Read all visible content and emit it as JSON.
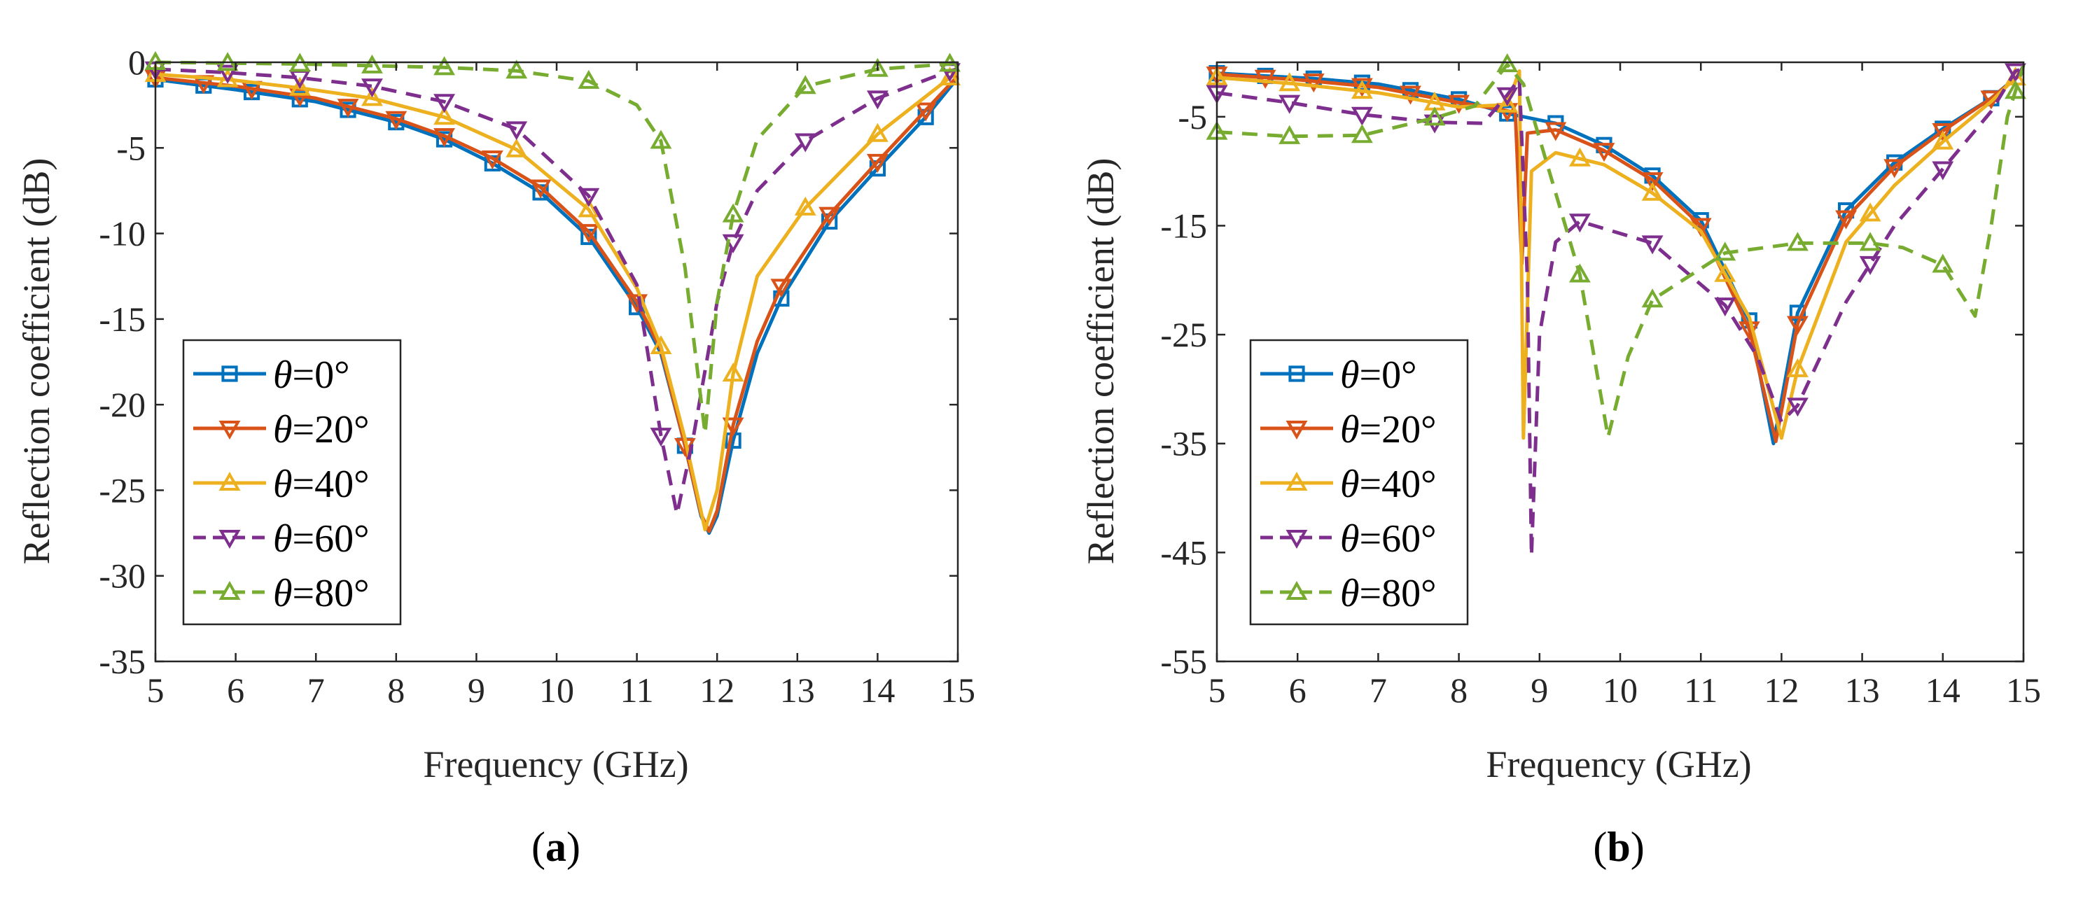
{
  "chart_data": [
    {
      "type": "line",
      "caption_letter": "a",
      "xlabel": "Frequency (GHz)",
      "ylabel": "Reflection coefficient (dB)",
      "xlim": [
        5,
        15
      ],
      "ylim": [
        -35,
        0
      ],
      "xticks": [
        5,
        6,
        7,
        8,
        9,
        10,
        11,
        12,
        13,
        14,
        15
      ],
      "yticks": [
        0,
        -5,
        -10,
        -15,
        -20,
        -25,
        -30,
        -35
      ],
      "legend_position": "bottom-left",
      "series": [
        {
          "name": "θ=0°",
          "color": "#0072BD",
          "dash": "solid",
          "marker": "square",
          "marker_start": 5,
          "marker_step": 0.6,
          "x": [
            5,
            6,
            7,
            8,
            8.6,
            9.2,
            9.8,
            10.4,
            11,
            11.3,
            11.6,
            11.8,
            11.9,
            12.0,
            12.2,
            12.5,
            12.8,
            13.4,
            14,
            14.6,
            15
          ],
          "y": [
            -1.0,
            -1.6,
            -2.3,
            -3.5,
            -4.5,
            -5.9,
            -7.6,
            -10.2,
            -14.3,
            -17,
            -22.4,
            -26.5,
            -27.5,
            -26.5,
            -22.1,
            -17,
            -13.8,
            -9.3,
            -6.2,
            -3.2,
            -0.9
          ]
        },
        {
          "name": "θ=20°",
          "color": "#D95319",
          "dash": "solid",
          "marker": "triangle-down",
          "marker_start": 5,
          "marker_step": 0.6,
          "x": [
            5,
            6,
            7,
            8,
            8.6,
            9.2,
            9.8,
            10.4,
            11,
            11.3,
            11.6,
            11.8,
            11.9,
            12.0,
            12.2,
            12.5,
            12.8,
            13.4,
            14,
            14.6,
            15
          ],
          "y": [
            -0.9,
            -1.4,
            -2.1,
            -3.3,
            -4.3,
            -5.6,
            -7.3,
            -9.9,
            -14,
            -16.8,
            -22.4,
            -26.4,
            -27.4,
            -26.2,
            -21.2,
            -16.3,
            -13.1,
            -8.9,
            -5.8,
            -2.8,
            -0.8
          ]
        },
        {
          "name": "θ=40°",
          "color": "#EDB120",
          "dash": "solid",
          "marker": "triangle-up",
          "marker_start": 5,
          "marker_step": 0.9,
          "x": [
            5,
            5.9,
            6.8,
            7.7,
            8.6,
            9.5,
            10.4,
            11,
            11.3,
            11.6,
            11.85,
            12.0,
            12.2,
            12.5,
            13.1,
            14,
            14.9,
            15
          ],
          "y": [
            -0.7,
            -1.0,
            -1.5,
            -2.1,
            -3.2,
            -5.1,
            -8.6,
            -13.2,
            -16.6,
            -22,
            -27.3,
            -25,
            -18.2,
            -12.5,
            -8.5,
            -4.2,
            -0.9,
            -0.6
          ]
        },
        {
          "name": "θ=60°",
          "color": "#7E2F8E",
          "dash": "dashed",
          "marker": "triangle-down",
          "marker_start": 5,
          "marker_step": 0.9,
          "x": [
            5,
            5.9,
            6.8,
            7.7,
            8.6,
            9.5,
            10.4,
            11,
            11.3,
            11.5,
            11.7,
            12.0,
            12.2,
            12.5,
            13.1,
            14,
            14.9,
            15
          ],
          "y": [
            -0.4,
            -0.6,
            -0.9,
            -1.4,
            -2.3,
            -3.9,
            -7.8,
            -13,
            -21.8,
            -26.4,
            -22,
            -14,
            -10.5,
            -7.5,
            -4.6,
            -2.1,
            -0.5,
            -0.4
          ]
        },
        {
          "name": "θ=80°",
          "color": "#77AC30",
          "dash": "dashed",
          "marker": "triangle-up",
          "marker_start": 5,
          "marker_step": 0.9,
          "x": [
            5,
            5.9,
            6.8,
            7.7,
            8.6,
            9.5,
            10.4,
            11,
            11.3,
            11.6,
            11.85,
            12.0,
            12.2,
            12.5,
            13.1,
            14,
            14.9,
            15
          ],
          "y": [
            0,
            -0.05,
            -0.1,
            -0.2,
            -0.3,
            -0.5,
            -1.1,
            -2.5,
            -4.6,
            -12,
            -21.7,
            -14,
            -8.9,
            -4.5,
            -1.4,
            -0.4,
            -0.1,
            0
          ]
        }
      ]
    },
    {
      "type": "line",
      "caption_letter": "b",
      "xlabel": "Frequency (GHz)",
      "ylabel": "Reflection coefficient (dB)",
      "xlim": [
        5,
        15
      ],
      "ylim": [
        -55,
        0
      ],
      "xticks": [
        5,
        6,
        7,
        8,
        9,
        10,
        11,
        12,
        13,
        14,
        15
      ],
      "yticks": [
        -5,
        -15,
        -25,
        -35,
        -45,
        -55
      ],
      "legend_position": "bottom-left",
      "series": [
        {
          "name": "θ=0°",
          "color": "#0072BD",
          "dash": "solid",
          "marker": "square",
          "marker_start": 5,
          "marker_step": 0.6,
          "x": [
            5,
            6.2,
            7,
            8,
            8.6,
            9.2,
            9.8,
            10.4,
            11,
            11.6,
            11.9,
            12.2,
            12.8,
            13.4,
            14,
            14.6,
            15
          ],
          "y": [
            -1.0,
            -1.5,
            -2.0,
            -3.4,
            -4.7,
            -5.6,
            -7.6,
            -10.4,
            -14.5,
            -23.7,
            -35,
            -23,
            -13.6,
            -9.2,
            -6.1,
            -3.3,
            -0.8
          ]
        },
        {
          "name": "θ=20°",
          "color": "#D95319",
          "dash": "solid",
          "marker": "triangle-down",
          "marker_start": 5,
          "marker_step": 0.6,
          "x": [
            5,
            6,
            7,
            8,
            8.5,
            8.7,
            8.78,
            8.85,
            9.2,
            9.8,
            10.4,
            11,
            11.6,
            11.93,
            12.2,
            12.8,
            13.4,
            14,
            14.6,
            15
          ],
          "y": [
            -1.1,
            -1.6,
            -2.3,
            -3.7,
            -4.3,
            -4.6,
            -18.5,
            -6.5,
            -6.2,
            -8.1,
            -10.8,
            -15,
            -24.5,
            -34.8,
            -24,
            -14.3,
            -9.6,
            -6.3,
            -3.3,
            -0.9
          ]
        },
        {
          "name": "θ=40°",
          "color": "#EDB120",
          "dash": "solid",
          "marker": "triangle-up",
          "marker_start": 5,
          "marker_step": 0.9,
          "x": [
            5,
            6,
            7,
            8,
            8.6,
            8.75,
            8.8,
            8.9,
            9.2,
            9.8,
            10.4,
            11,
            11.6,
            12.0,
            12.2,
            12.8,
            13.4,
            14,
            14.6,
            15
          ],
          "y": [
            -1.4,
            -2.0,
            -2.8,
            -4.1,
            -3.9,
            -0.8,
            -34.5,
            -10,
            -8.3,
            -9.4,
            -12,
            -15.5,
            -23.4,
            -34.5,
            -28.2,
            -16.5,
            -11.3,
            -7.3,
            -3.6,
            -0.7
          ]
        },
        {
          "name": "θ=60°",
          "color": "#7E2F8E",
          "dash": "dashed",
          "marker": "triangle-down",
          "marker_start": 5,
          "marker_step": 0.9,
          "x": [
            5,
            5.9,
            6.8,
            7.7,
            8.3,
            8.6,
            8.75,
            8.85,
            8.9,
            9.0,
            9.2,
            9.5,
            10.4,
            11.3,
            11.7,
            12.0,
            12.2,
            12.8,
            13.4,
            14,
            14.6,
            14.9,
            15
          ],
          "y": [
            -2.8,
            -3.7,
            -4.8,
            -5.5,
            -5.6,
            -3,
            -1.5,
            -20,
            -45.3,
            -25,
            -16.5,
            -14.6,
            -16.6,
            -22.3,
            -27,
            -33,
            -31.5,
            -22,
            -15,
            -9.8,
            -4.5,
            -0.8,
            -0.6
          ]
        },
        {
          "name": "θ=80°",
          "color": "#77AC30",
          "dash": "dashed",
          "marker": "triangle-up",
          "marker_start": 5,
          "marker_step": 0.9,
          "x": [
            5,
            5.9,
            6.8,
            7.7,
            8.2,
            8.6,
            8.8,
            9.0,
            9.5,
            9.85,
            10.1,
            10.4,
            11.3,
            12.2,
            13.1,
            13.5,
            14,
            14.4,
            14.6,
            14.8,
            15
          ],
          "y": [
            -6.4,
            -6.8,
            -6.7,
            -5.1,
            -4,
            -0.2,
            -2,
            -7,
            -19.5,
            -34.4,
            -27,
            -21.8,
            -17.5,
            -16.6,
            -16.6,
            -17,
            -18.6,
            -23.3,
            -15,
            -5,
            -0.3
          ]
        }
      ]
    }
  ]
}
